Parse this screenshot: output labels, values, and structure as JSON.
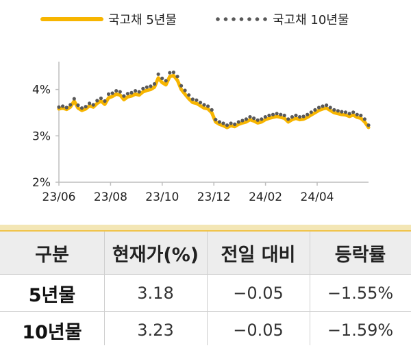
{
  "colors": {
    "series_5y": "#f7b500",
    "series_10y": "#595959",
    "axis": "#bdbdbd",
    "table_header_bg": "#ededed",
    "table_accent": "#f0c34a"
  },
  "chart_data": {
    "type": "line",
    "x_labels": [
      "23/06",
      "23/08",
      "23/10",
      "23/12",
      "24/02",
      "24/04"
    ],
    "y_tick_labels": [
      "4%",
      "3%",
      "2%"
    ],
    "y_ticks": [
      4,
      3,
      2
    ],
    "ylim": [
      2,
      4.6
    ],
    "grid": false,
    "legend_position": "top",
    "series": [
      {
        "name": "국고채 5년물",
        "style": "line",
        "values": [
          3.58,
          3.6,
          3.57,
          3.62,
          3.75,
          3.6,
          3.55,
          3.58,
          3.65,
          3.62,
          3.7,
          3.75,
          3.68,
          3.82,
          3.85,
          3.9,
          3.88,
          3.78,
          3.84,
          3.86,
          3.9,
          3.88,
          3.95,
          3.98,
          4.0,
          4.05,
          4.25,
          4.15,
          4.1,
          4.28,
          4.3,
          4.2,
          4.0,
          3.9,
          3.8,
          3.72,
          3.7,
          3.65,
          3.6,
          3.58,
          3.5,
          3.3,
          3.25,
          3.22,
          3.18,
          3.22,
          3.2,
          3.25,
          3.28,
          3.3,
          3.35,
          3.32,
          3.28,
          3.3,
          3.35,
          3.38,
          3.4,
          3.42,
          3.4,
          3.38,
          3.3,
          3.35,
          3.38,
          3.35,
          3.36,
          3.4,
          3.45,
          3.5,
          3.55,
          3.58,
          3.6,
          3.55,
          3.5,
          3.48,
          3.46,
          3.45,
          3.42,
          3.45,
          3.4,
          3.38,
          3.3,
          3.18
        ]
      },
      {
        "name": "국고채 10년물",
        "style": "dots",
        "values": [
          3.62,
          3.64,
          3.61,
          3.67,
          3.8,
          3.66,
          3.6,
          3.63,
          3.7,
          3.67,
          3.76,
          3.81,
          3.75,
          3.9,
          3.92,
          3.97,
          3.95,
          3.86,
          3.91,
          3.93,
          3.97,
          3.95,
          4.02,
          4.05,
          4.07,
          4.12,
          4.33,
          4.24,
          4.19,
          4.36,
          4.37,
          4.28,
          4.08,
          3.98,
          3.88,
          3.79,
          3.77,
          3.72,
          3.67,
          3.64,
          3.56,
          3.35,
          3.3,
          3.27,
          3.23,
          3.27,
          3.25,
          3.3,
          3.33,
          3.36,
          3.41,
          3.38,
          3.34,
          3.36,
          3.41,
          3.44,
          3.46,
          3.48,
          3.46,
          3.44,
          3.36,
          3.41,
          3.44,
          3.41,
          3.42,
          3.46,
          3.51,
          3.56,
          3.61,
          3.64,
          3.66,
          3.61,
          3.56,
          3.54,
          3.52,
          3.51,
          3.48,
          3.51,
          3.46,
          3.44,
          3.36,
          3.23
        ]
      }
    ]
  },
  "table": {
    "headers": [
      "구분",
      "현재가(%)",
      "전일 대비",
      "등락률"
    ],
    "rows": [
      {
        "name": "5년물",
        "price": "3.18",
        "change": "−0.05",
        "rate": "−1.55%"
      },
      {
        "name": "10년물",
        "price": "3.23",
        "change": "−0.05",
        "rate": "−1.59%"
      }
    ]
  }
}
